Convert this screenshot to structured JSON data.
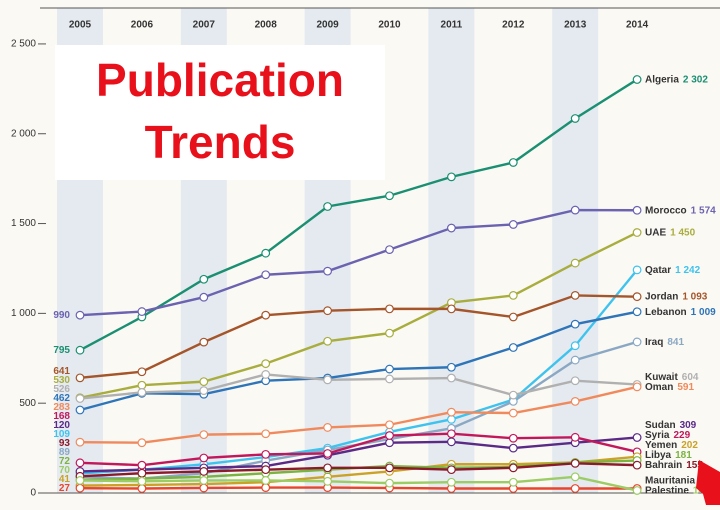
{
  "chart_data": {
    "type": "line",
    "annotation": [
      "Publication",
      "Trends"
    ],
    "categories": [
      "2005",
      "2006",
      "2007",
      "2008",
      "2009",
      "2010",
      "2011",
      "2012",
      "2013",
      "2014"
    ],
    "ylim": [
      0,
      2700
    ],
    "yticks": [
      0,
      500,
      {
        "value": 1000,
        "label": "1 000"
      },
      {
        "value": 1500,
        "label": "1 500"
      },
      {
        "value": 2000,
        "label": "2 000"
      },
      {
        "value": 2500,
        "label": "2 500"
      }
    ],
    "series": [
      {
        "name": "Algeria",
        "color": "#1a8f72",
        "values": [
          795,
          980,
          1190,
          1335,
          1595,
          1655,
          1760,
          1840,
          2085,
          2302
        ],
        "value_labels": [
          null,
          null,
          null,
          null,
          null,
          null,
          null,
          null,
          null,
          "2 302"
        ]
      },
      {
        "name": "Morocco",
        "color": "#6b62b0",
        "values": [
          990,
          1010,
          1090,
          1215,
          1235,
          1355,
          1475,
          1495,
          1575,
          1574
        ],
        "value_labels": [
          null,
          null,
          null,
          null,
          null,
          null,
          null,
          null,
          null,
          "1 574"
        ]
      },
      {
        "name": "UAE",
        "color": "#a8ad3e",
        "values": [
          530,
          600,
          620,
          720,
          845,
          890,
          1060,
          1100,
          1280,
          1450
        ],
        "value_labels": [
          null,
          null,
          null,
          null,
          null,
          null,
          null,
          null,
          null,
          "1 450"
        ]
      },
      {
        "name": "Qatar",
        "color": "#3ec3ef",
        "values": [
          109,
          130,
          160,
          200,
          250,
          340,
          410,
          520,
          820,
          1242
        ],
        "value_labels": [
          null,
          null,
          null,
          null,
          null,
          null,
          null,
          null,
          null,
          "1 242"
        ]
      },
      {
        "name": "Jordan",
        "color": "#a5552a",
        "values": [
          641,
          675,
          840,
          990,
          1015,
          1025,
          1025,
          980,
          1100,
          1093
        ],
        "value_labels": [
          null,
          null,
          null,
          null,
          null,
          null,
          null,
          null,
          null,
          "1 093"
        ]
      },
      {
        "name": "Lebanon",
        "color": "#2e74b8",
        "values": [
          462,
          555,
          550,
          625,
          640,
          690,
          700,
          810,
          940,
          1009
        ],
        "value_labels": [
          null,
          null,
          null,
          null,
          null,
          null,
          null,
          null,
          null,
          "1 009"
        ]
      },
      {
        "name": "Iraq",
        "color": "#8aa8c4",
        "values": [
          89,
          80,
          110,
          180,
          240,
          300,
          360,
          510,
          740,
          841
        ]
      },
      {
        "name": "Kuwait",
        "color": "#b0b0b0",
        "values": [
          526,
          560,
          570,
          660,
          630,
          635,
          640,
          545,
          625,
          604
        ]
      },
      {
        "name": "Oman",
        "color": "#f08a5d",
        "values": [
          283,
          280,
          325,
          330,
          365,
          380,
          450,
          445,
          510,
          591
        ]
      },
      {
        "name": "Sudan",
        "color": "#5a2a86",
        "values": [
          120,
          130,
          140,
          150,
          210,
          280,
          285,
          250,
          280,
          309
        ]
      },
      {
        "name": "Syria",
        "color": "#c2185b",
        "values": [
          168,
          155,
          195,
          215,
          220,
          320,
          330,
          305,
          310,
          229
        ]
      },
      {
        "name": "Yemen",
        "color": "#c9a227",
        "values": [
          41,
          45,
          50,
          60,
          90,
          120,
          160,
          160,
          170,
          202
        ]
      },
      {
        "name": "Libya",
        "color": "#7bb342",
        "values": [
          72,
          80,
          90,
          110,
          130,
          150,
          140,
          145,
          170,
          181
        ]
      },
      {
        "name": "Bahrain",
        "color": "#8b1a2b",
        "values": [
          93,
          110,
          120,
          130,
          140,
          140,
          130,
          140,
          165,
          155
        ]
      },
      {
        "name": "Mauritania",
        "color": "#e8452c",
        "values": [
          27,
          25,
          28,
          30,
          30,
          28,
          25,
          25,
          25,
          25
        ]
      },
      {
        "name": "Palestine",
        "color": "#9ccc65",
        "values": [
          70,
          65,
          70,
          70,
          65,
          55,
          60,
          60,
          90,
          14
        ]
      }
    ]
  }
}
